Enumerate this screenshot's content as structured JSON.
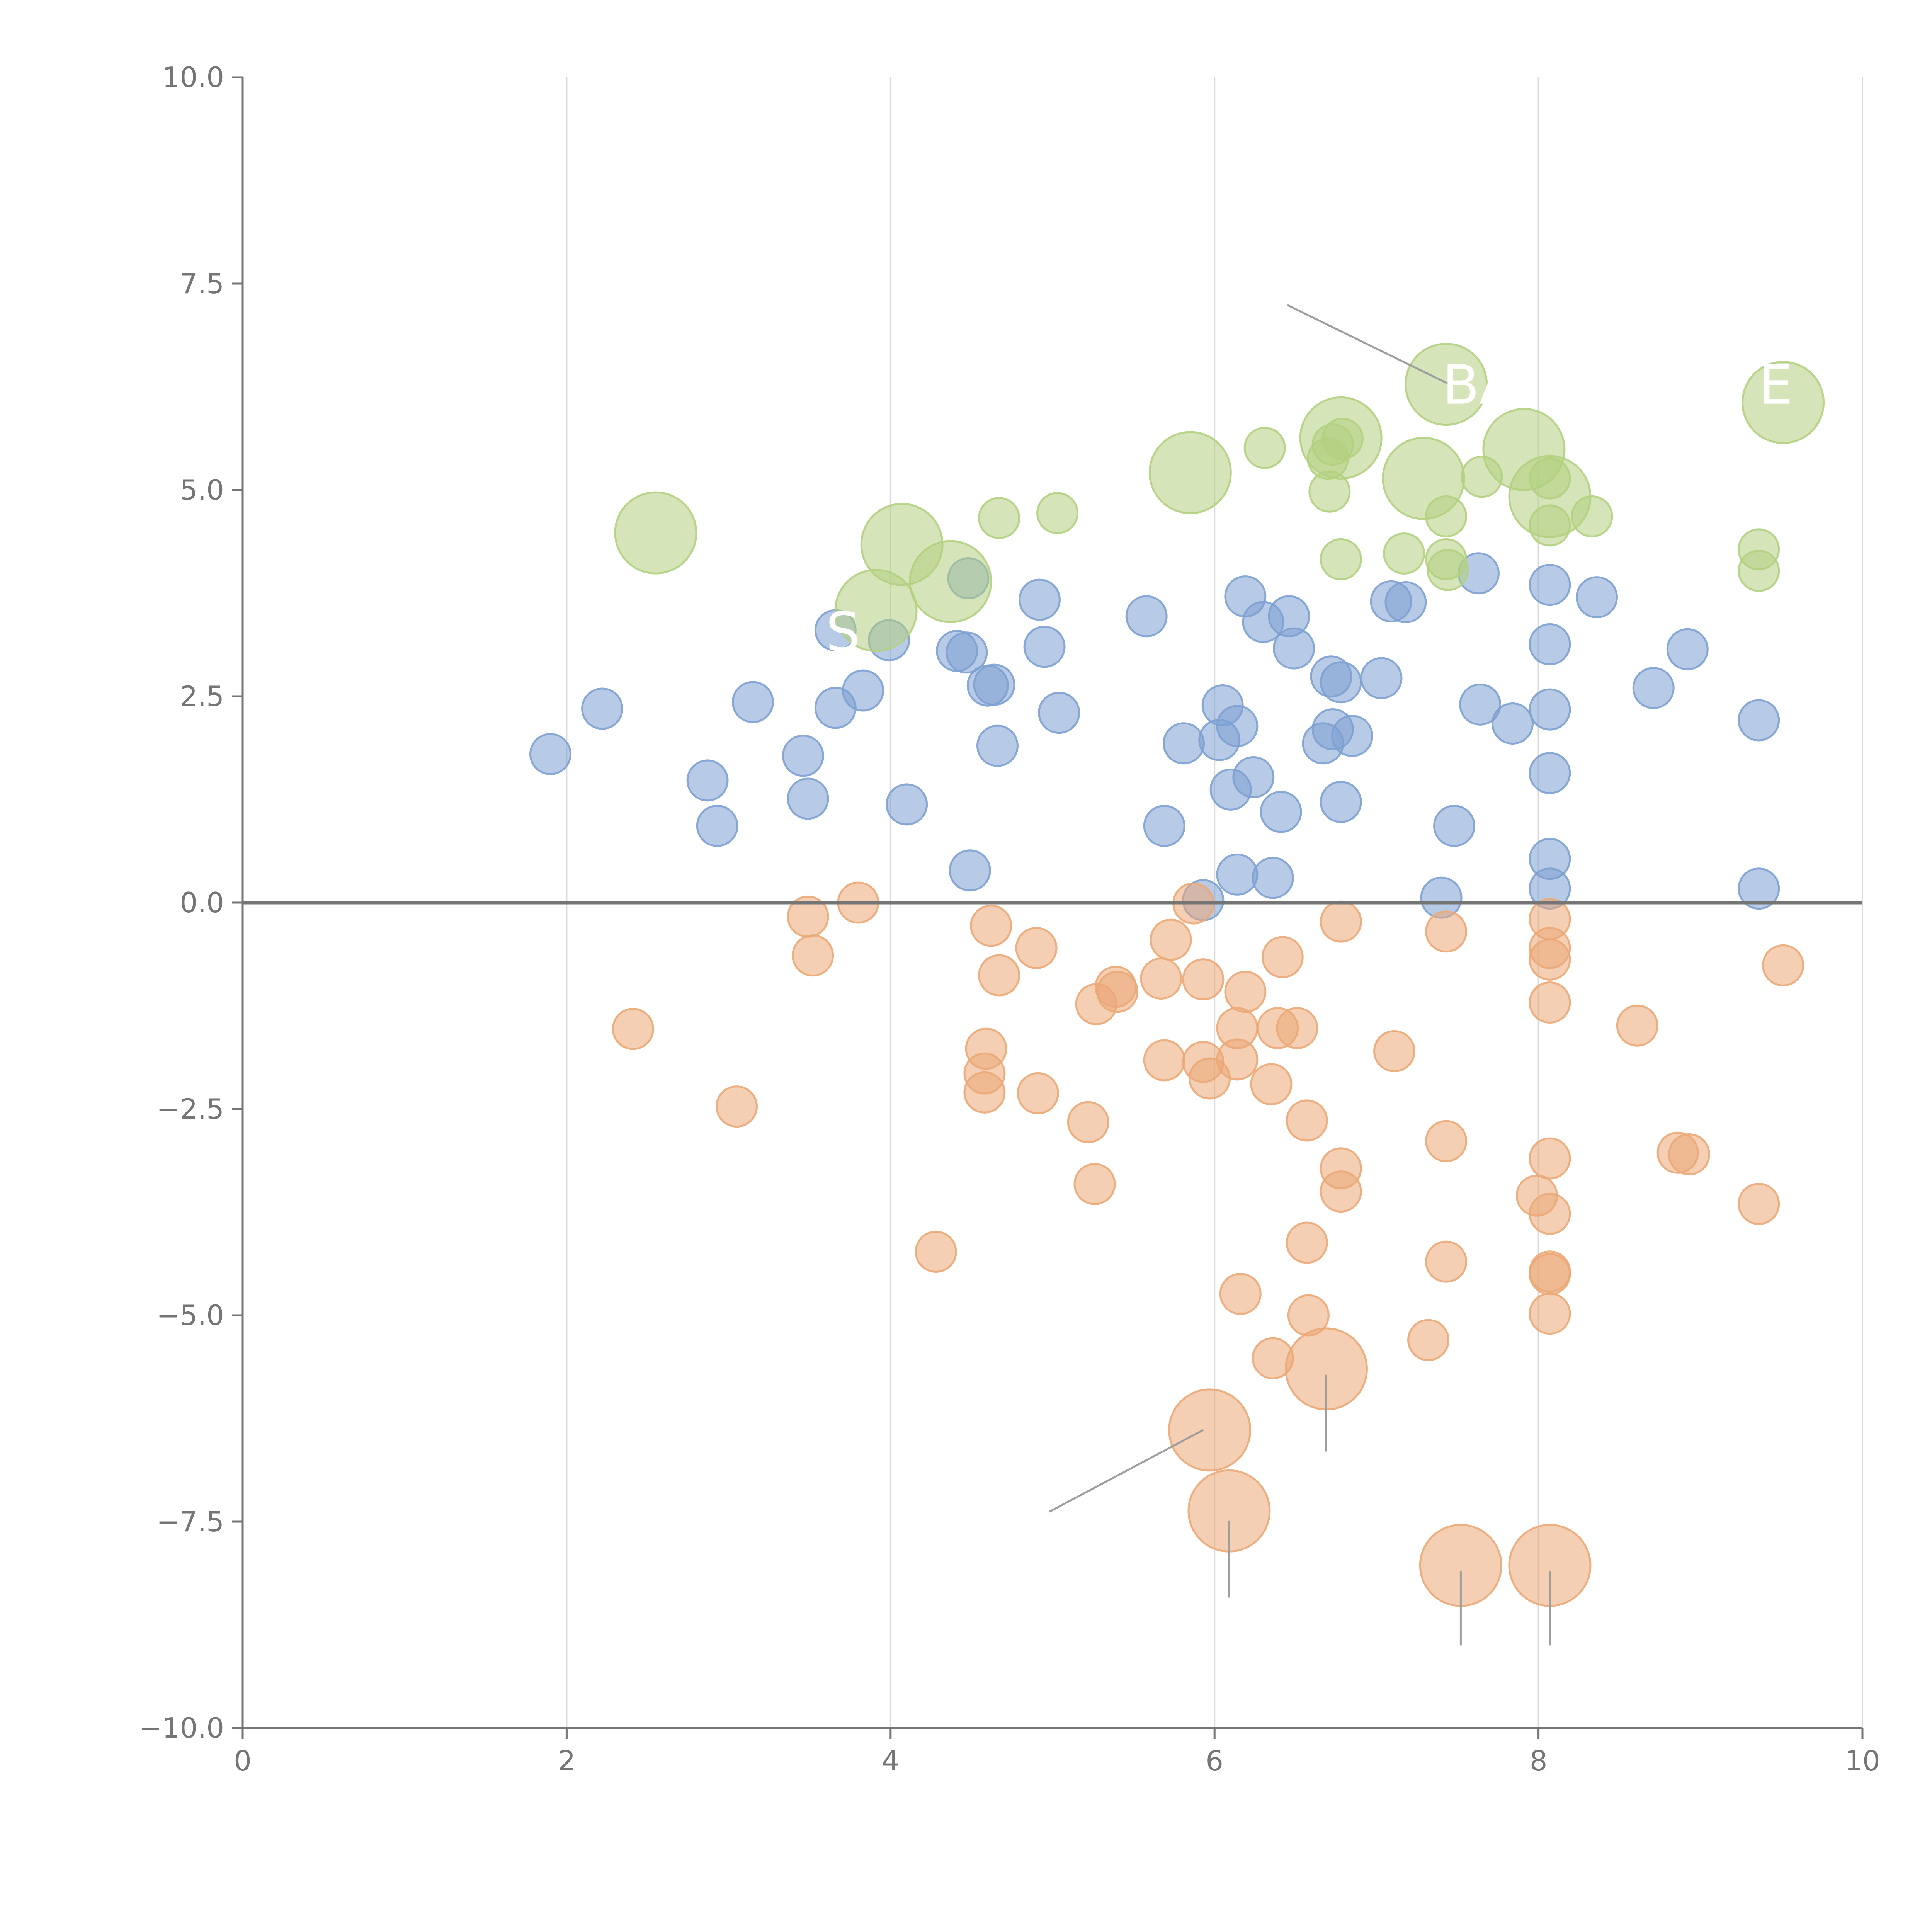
{
  "chart_data": {
    "type": "scatter",
    "title": "",
    "xlabel": "",
    "ylabel": "",
    "xlim": [
      0,
      10
    ],
    "ylim": [
      -10,
      10
    ],
    "x_ticks": [
      0,
      2,
      4,
      6,
      8,
      10
    ],
    "y_ticks": [
      -10,
      -7.5,
      -5,
      -2.5,
      0,
      2.5,
      5,
      7.5,
      10
    ],
    "x_tick_labels": [
      "0",
      "2",
      "4",
      "6",
      "8",
      "10"
    ],
    "y_tick_labels": [
      "−10.0",
      "−7.5",
      "−5.0",
      "−2.5",
      "0.0",
      "2.5",
      "5.0",
      "7.5",
      "10.0"
    ],
    "grid": {
      "vertical": true,
      "horizontal": false
    },
    "zero_line": true,
    "series": [
      {
        "name": "positive",
        "color": "#7ea1d1",
        "points": [
          [
            1.9,
            1.8,
            1
          ],
          [
            2.22,
            2.35,
            1
          ],
          [
            2.87,
            1.48,
            1
          ],
          [
            2.93,
            0.93,
            1
          ],
          [
            3.15,
            2.43,
            1
          ],
          [
            3.46,
            1.78,
            1
          ],
          [
            3.49,
            1.26,
            1
          ],
          [
            3.66,
            2.36,
            1
          ],
          [
            3.66,
            3.3,
            1
          ],
          [
            3.83,
            2.57,
            1
          ],
          [
            3.99,
            3.18,
            1
          ],
          [
            4.1,
            1.19,
            1
          ],
          [
            4.41,
            3.05,
            1
          ],
          [
            4.47,
            3.03,
            1
          ],
          [
            4.48,
            3.93,
            1
          ],
          [
            4.49,
            0.39,
            1
          ],
          [
            4.6,
            2.63,
            1
          ],
          [
            4.64,
            2.64,
            1
          ],
          [
            4.66,
            1.9,
            1
          ],
          [
            4.92,
            3.67,
            1
          ],
          [
            4.95,
            3.1,
            1
          ],
          [
            5.04,
            2.3,
            1
          ],
          [
            5.58,
            3.47,
            1
          ],
          [
            5.69,
            0.93,
            1
          ],
          [
            5.81,
            1.93,
            1
          ],
          [
            5.93,
            0.03,
            1
          ],
          [
            6.03,
            1.97,
            1
          ],
          [
            6.05,
            2.39,
            1
          ],
          [
            6.1,
            1.37,
            1
          ],
          [
            6.14,
            2.14,
            1
          ],
          [
            6.14,
            0.34,
            1
          ],
          [
            6.19,
            3.71,
            1
          ],
          [
            6.24,
            1.52,
            1
          ],
          [
            6.3,
            3.4,
            1
          ],
          [
            6.36,
            0.3,
            1
          ],
          [
            6.41,
            1.1,
            1
          ],
          [
            6.46,
            3.47,
            1
          ],
          [
            6.49,
            3.08,
            1
          ],
          [
            6.67,
            1.93,
            1
          ],
          [
            6.72,
            2.74,
            1
          ],
          [
            6.73,
            2.1,
            1
          ],
          [
            6.78,
            2.67,
            1
          ],
          [
            6.78,
            1.22,
            1
          ],
          [
            6.85,
            2.02,
            1
          ],
          [
            7.03,
            2.72,
            1
          ],
          [
            7.09,
            3.65,
            1
          ],
          [
            7.18,
            3.64,
            1
          ],
          [
            7.4,
            0.06,
            1
          ],
          [
            7.48,
            0.93,
            1
          ],
          [
            7.63,
            3.99,
            1
          ],
          [
            7.64,
            2.4,
            1
          ],
          [
            7.84,
            2.17,
            1
          ],
          [
            8.07,
            3.85,
            1
          ],
          [
            8.07,
            3.13,
            1
          ],
          [
            8.07,
            2.34,
            1
          ],
          [
            8.07,
            1.57,
            1
          ],
          [
            8.07,
            0.53,
            1
          ],
          [
            8.07,
            0.17,
            1
          ],
          [
            8.36,
            3.7,
            1
          ],
          [
            8.71,
            2.6,
            1
          ],
          [
            8.92,
            3.07,
            1
          ],
          [
            9.36,
            2.21,
            1
          ],
          [
            9.36,
            0.17,
            1
          ]
        ]
      },
      {
        "name": "negative",
        "color": "#eba877",
        "points": [
          [
            2.41,
            -1.53,
            1
          ],
          [
            3.05,
            -2.47,
            1
          ],
          [
            3.49,
            -0.17,
            1
          ],
          [
            3.52,
            -0.64,
            1
          ],
          [
            3.8,
            0.0,
            1
          ],
          [
            4.28,
            -4.23,
            1
          ],
          [
            4.58,
            -2.07,
            1
          ],
          [
            4.58,
            -2.3,
            1
          ],
          [
            4.59,
            -1.77,
            1
          ],
          [
            4.62,
            -0.28,
            1
          ],
          [
            4.67,
            -0.88,
            1
          ],
          [
            4.9,
            -0.55,
            1
          ],
          [
            4.91,
            -2.31,
            1
          ],
          [
            5.22,
            -2.66,
            1
          ],
          [
            5.26,
            -3.41,
            1
          ],
          [
            5.27,
            -1.23,
            1
          ],
          [
            5.39,
            -1.02,
            1
          ],
          [
            5.4,
            -1.08,
            1
          ],
          [
            5.67,
            -0.92,
            1
          ],
          [
            5.69,
            -1.91,
            1
          ],
          [
            5.73,
            -0.45,
            1
          ],
          [
            5.87,
            -0.01,
            1
          ],
          [
            5.93,
            -0.93,
            1
          ],
          [
            5.93,
            -1.93,
            1
          ],
          [
            5.97,
            -2.13,
            1
          ],
          [
            5.97,
            -6.39,
            3
          ],
          [
            6.09,
            -7.37,
            3
          ],
          [
            6.14,
            -1.52,
            1
          ],
          [
            6.14,
            -1.9,
            1
          ],
          [
            6.16,
            -4.74,
            1
          ],
          [
            6.19,
            -1.08,
            1
          ],
          [
            6.35,
            -2.2,
            1
          ],
          [
            6.36,
            -5.52,
            1
          ],
          [
            6.39,
            -1.52,
            1
          ],
          [
            6.42,
            -0.66,
            1
          ],
          [
            6.51,
            -1.52,
            1
          ],
          [
            6.57,
            -2.64,
            1
          ],
          [
            6.57,
            -4.12,
            1
          ],
          [
            6.58,
            -5.0,
            1
          ],
          [
            6.69,
            -5.65,
            3
          ],
          [
            6.78,
            -0.23,
            1
          ],
          [
            6.78,
            -3.22,
            1
          ],
          [
            6.78,
            -3.5,
            1
          ],
          [
            7.11,
            -1.8,
            1
          ],
          [
            7.32,
            -5.3,
            1
          ],
          [
            7.43,
            -0.35,
            1
          ],
          [
            7.43,
            -2.89,
            1
          ],
          [
            7.43,
            -4.35,
            1
          ],
          [
            7.52,
            -8.03,
            3
          ],
          [
            7.99,
            -3.55,
            1
          ],
          [
            8.07,
            -0.2,
            1
          ],
          [
            8.07,
            -0.55,
            1
          ],
          [
            8.07,
            -0.69,
            1
          ],
          [
            8.07,
            -1.21,
            1
          ],
          [
            8.07,
            -3.1,
            1
          ],
          [
            8.07,
            -3.77,
            1
          ],
          [
            8.07,
            -4.47,
            1
          ],
          [
            8.07,
            -4.5,
            1
          ],
          [
            8.07,
            -4.98,
            1
          ],
          [
            8.07,
            -8.03,
            3
          ],
          [
            8.61,
            -1.49,
            1
          ],
          [
            8.86,
            -3.03,
            1
          ],
          [
            8.93,
            -3.05,
            1
          ],
          [
            9.36,
            -3.65,
            1
          ],
          [
            9.51,
            -0.76,
            1
          ]
        ]
      },
      {
        "name": "highlight",
        "color": "#b3d07f",
        "points": [
          [
            2.55,
            4.48,
            3
          ],
          [
            3.91,
            3.54,
            3
          ],
          [
            4.07,
            4.34,
            3
          ],
          [
            4.37,
            3.89,
            3
          ],
          [
            4.67,
            4.66,
            1
          ],
          [
            5.03,
            4.72,
            1
          ],
          [
            5.85,
            5.21,
            3
          ],
          [
            6.31,
            5.51,
            1
          ],
          [
            6.7,
            5.38,
            1
          ],
          [
            6.71,
            4.98,
            1
          ],
          [
            6.73,
            5.55,
            1
          ],
          [
            6.78,
            5.63,
            3
          ],
          [
            6.78,
            4.16,
            1
          ],
          [
            6.79,
            5.62,
            1
          ],
          [
            7.17,
            4.23,
            1
          ],
          [
            7.29,
            5.14,
            3
          ],
          [
            7.43,
            6.28,
            3
          ],
          [
            7.43,
            4.68,
            1
          ],
          [
            7.43,
            4.16,
            1
          ],
          [
            7.44,
            4.03,
            1
          ],
          [
            7.65,
            5.16,
            1
          ],
          [
            7.91,
            5.49,
            3
          ],
          [
            8.07,
            5.14,
            1
          ],
          [
            8.07,
            4.92,
            3
          ],
          [
            8.07,
            4.57,
            1
          ],
          [
            8.33,
            4.68,
            1
          ],
          [
            9.36,
            4.28,
            1
          ],
          [
            9.36,
            4.02,
            1
          ],
          [
            9.51,
            6.06,
            3
          ]
        ]
      }
    ],
    "label_lines": [
      [
        [
          6.45,
          7.24
        ],
        [
          7.45,
          6.28
        ]
      ],
      [
        [
          4.98,
          -7.38
        ],
        [
          5.93,
          -6.39
        ]
      ],
      [
        [
          6.69,
          -5.72
        ],
        [
          6.69,
          -6.65
        ]
      ],
      [
        [
          6.09,
          -7.49
        ],
        [
          6.09,
          -8.42
        ]
      ],
      [
        [
          7.52,
          -8.1
        ],
        [
          7.52,
          -9.0
        ]
      ],
      [
        [
          8.07,
          -8.1
        ],
        [
          8.07,
          -9.0
        ]
      ]
    ],
    "bubble_labels": [
      "S",
      "BA",
      "E"
    ]
  }
}
